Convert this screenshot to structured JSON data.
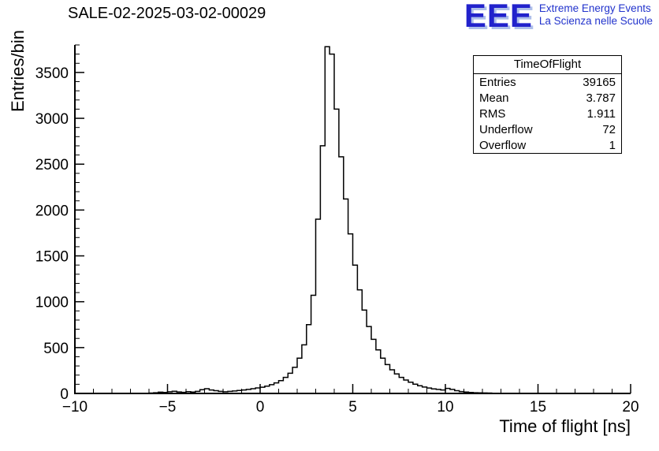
{
  "header": {
    "title": "SALE-02-2025-03-02-00029"
  },
  "logo": {
    "text": "EEE",
    "line1": "Extreme Energy Events",
    "line2": "La Scienza nelle Scuole",
    "color": "#2222cc"
  },
  "stats": {
    "title": "TimeOfFlight",
    "rows": [
      {
        "label": "Entries",
        "value": "39165"
      },
      {
        "label": "Mean",
        "value": "3.787"
      },
      {
        "label": "RMS",
        "value": "1.911"
      },
      {
        "label": "Underflow",
        "value": "72"
      },
      {
        "label": "Overflow",
        "value": "1"
      }
    ]
  },
  "chart_data": {
    "type": "bar",
    "style": "step-histogram-outline",
    "title": "SALE-02-2025-03-02-00029",
    "xlabel": "Time of flight [ns]",
    "ylabel": "Entries/bin",
    "xlim": [
      -10,
      20
    ],
    "ylim": [
      0,
      3800
    ],
    "bin_start": -10,
    "bin_width": 0.25,
    "values": [
      0,
      0,
      0,
      0,
      0,
      0,
      0,
      0,
      1,
      0,
      2,
      1,
      2,
      1,
      3,
      2,
      4,
      8,
      14,
      10,
      18,
      24,
      16,
      12,
      20,
      15,
      22,
      40,
      52,
      38,
      30,
      22,
      18,
      22,
      27,
      32,
      38,
      44,
      52,
      60,
      68,
      80,
      95,
      115,
      140,
      175,
      220,
      285,
      385,
      530,
      750,
      1070,
      1900,
      2700,
      3780,
      3700,
      3100,
      2580,
      2120,
      1740,
      1400,
      1130,
      910,
      730,
      590,
      475,
      385,
      315,
      258,
      212,
      175,
      146,
      122,
      101,
      84,
      70,
      59,
      50,
      44,
      38,
      55,
      44,
      30,
      21,
      15,
      11,
      8,
      6,
      5,
      4,
      3,
      2,
      2,
      1,
      1,
      1,
      1,
      0,
      1,
      0,
      0,
      1,
      0,
      0,
      0,
      0,
      0,
      0,
      0,
      0,
      0,
      0,
      0,
      0,
      0,
      0,
      0,
      0,
      0,
      0
    ],
    "xticks": [
      {
        "v": -10,
        "label": "−10"
      },
      {
        "v": -5,
        "label": "−5"
      },
      {
        "v": 0,
        "label": "0"
      },
      {
        "v": 5,
        "label": "5"
      },
      {
        "v": 10,
        "label": "10"
      },
      {
        "v": 15,
        "label": "15"
      },
      {
        "v": 20,
        "label": "20"
      }
    ],
    "yticks": [
      {
        "v": 0,
        "label": "0"
      },
      {
        "v": 500,
        "label": "500"
      },
      {
        "v": 1000,
        "label": "1000"
      },
      {
        "v": 1500,
        "label": "1500"
      },
      {
        "v": 2000,
        "label": "2000"
      },
      {
        "v": 2500,
        "label": "2500"
      },
      {
        "v": 3000,
        "label": "3000"
      },
      {
        "v": 3500,
        "label": "3500"
      }
    ],
    "x_minor_step": 1,
    "y_minor_step": 100,
    "line_color": "#000000",
    "grid": false,
    "legend": "stats-box-top-right"
  }
}
